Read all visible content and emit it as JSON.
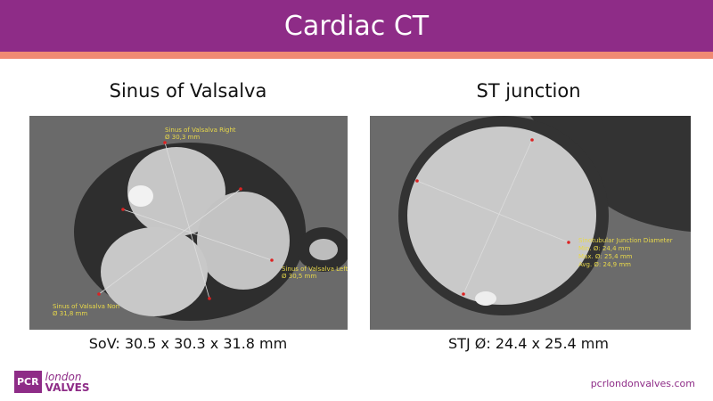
{
  "header": {
    "title": "Cardiac CT"
  },
  "panels": [
    {
      "title": "Sinus of Valsalva",
      "annotations": [
        [
          "Sinus of Valsalva Right",
          "Ø 30,3 mm"
        ],
        [
          "Sinus of Valsalva Left",
          "Ø 30,5 mm"
        ],
        [
          "Sinus of Valsalva Non",
          "Ø 31,8 mm"
        ]
      ],
      "caption": "SoV: 30.5 x 30.3 x 31.8 mm"
    },
    {
      "title": "ST junction",
      "annotations": [
        [
          "Sinotubular Junction Diameter",
          "Min. Ø: 24,4 mm",
          "Max. Ø: 25,4 mm",
          "Avg. Ø: 24,9 mm"
        ]
      ],
      "caption": "STJ Ø: 24.4 x 25.4 mm"
    }
  ],
  "footer": {
    "logo": {
      "mark": "PCR",
      "line1": "london",
      "line2": "VALVES"
    },
    "url": "pcrlondonvalves.com"
  }
}
